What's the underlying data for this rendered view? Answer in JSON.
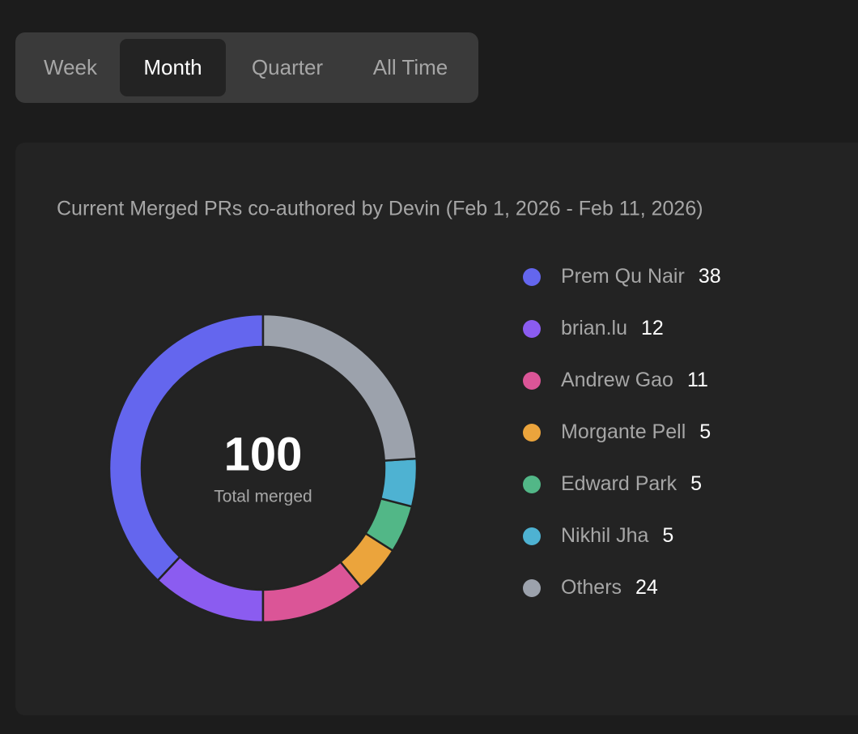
{
  "tabs": [
    {
      "label": "Week",
      "selected": false
    },
    {
      "label": "Month",
      "selected": true
    },
    {
      "label": "Quarter",
      "selected": false
    },
    {
      "label": "All Time",
      "selected": false
    }
  ],
  "chart_data": {
    "type": "donut",
    "title": "Current Merged PRs co-authored by Devin (Feb 1, 2026 - Feb 11, 2026)",
    "center_value": 100,
    "center_label": "Total merged",
    "categories": [
      "Prem Qu Nair",
      "brian.lu",
      "Andrew Gao",
      "Morgante Pell",
      "Edward Park",
      "Nikhil Jha",
      "Others"
    ],
    "values": [
      38,
      12,
      11,
      5,
      5,
      5,
      24
    ],
    "colors": [
      "#6466ee",
      "#8b5cf0",
      "#db5597",
      "#eba43c",
      "#52b787",
      "#4eb2d2",
      "#9ca2ac"
    ]
  }
}
